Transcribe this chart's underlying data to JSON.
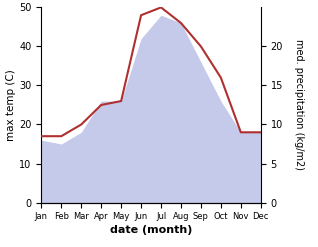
{
  "months": [
    "Jan",
    "Feb",
    "Mar",
    "Apr",
    "May",
    "Jun",
    "Jul",
    "Aug",
    "Sep",
    "Oct",
    "Nov",
    "Dec"
  ],
  "x": [
    0,
    1,
    2,
    3,
    4,
    5,
    6,
    7,
    8,
    9,
    10,
    11
  ],
  "max_temp": [
    17,
    17,
    20,
    25,
    26,
    48,
    50,
    46,
    40,
    32,
    18,
    18
  ],
  "precipitation": [
    8,
    7.5,
    9,
    13,
    13,
    21,
    24,
    23,
    18,
    13,
    9,
    9
  ],
  "temp_color": "#b03030",
  "precip_fill_color": "#c5caea",
  "left_ylim": [
    0,
    50
  ],
  "right_ylim": [
    0,
    25
  ],
  "left_yticks": [
    0,
    10,
    20,
    30,
    40,
    50
  ],
  "right_yticks": [
    0,
    5,
    10,
    15,
    20
  ],
  "xlabel": "date (month)",
  "ylabel_left": "max temp (C)",
  "ylabel_right": "med. precipitation (kg/m2)",
  "figsize": [
    3.18,
    2.47
  ],
  "dpi": 100
}
